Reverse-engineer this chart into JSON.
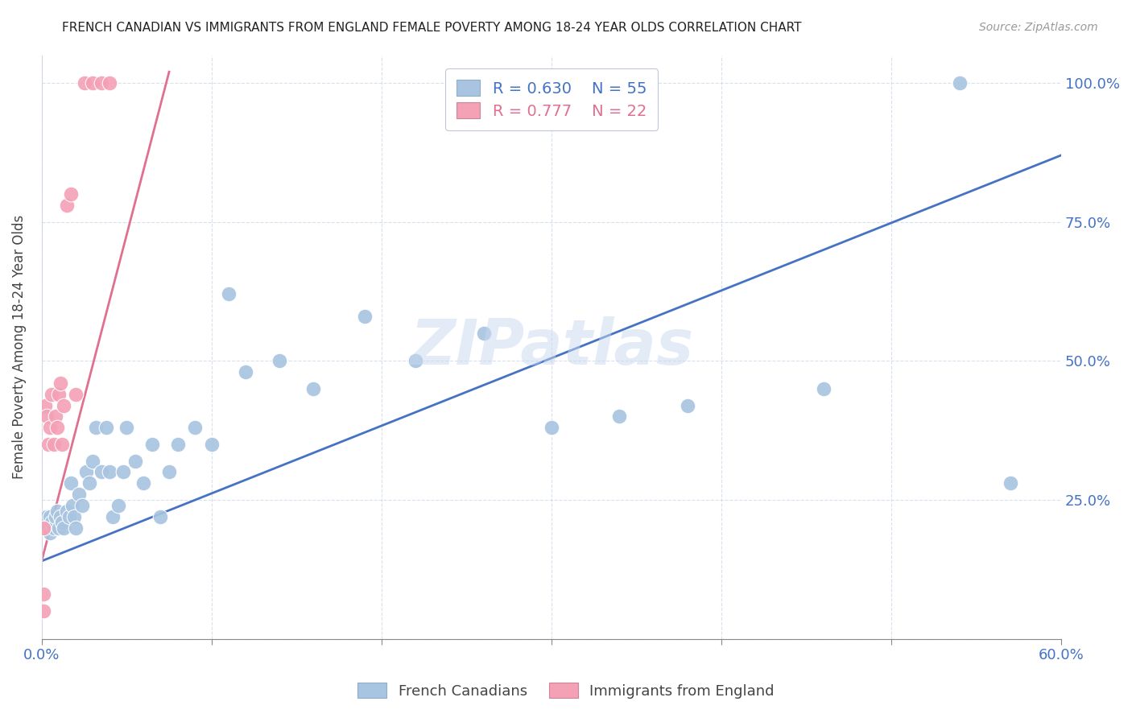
{
  "title": "FRENCH CANADIAN VS IMMIGRANTS FROM ENGLAND FEMALE POVERTY AMONG 18-24 YEAR OLDS CORRELATION CHART",
  "source": "Source: ZipAtlas.com",
  "ylabel": "Female Poverty Among 18-24 Year Olds",
  "watermark": "ZIPatlas",
  "xlim": [
    0.0,
    0.6
  ],
  "ylim": [
    0.0,
    1.05
  ],
  "xticks": [
    0.0,
    0.1,
    0.2,
    0.3,
    0.4,
    0.5,
    0.6
  ],
  "xticklabels": [
    "0.0%",
    "",
    "",
    "",
    "",
    "",
    "60.0%"
  ],
  "yticks": [
    0.0,
    0.25,
    0.5,
    0.75,
    1.0
  ],
  "yticklabels": [
    "",
    "25.0%",
    "50.0%",
    "75.0%",
    "100.0%"
  ],
  "blue_R": 0.63,
  "blue_N": 55,
  "pink_R": 0.777,
  "pink_N": 22,
  "blue_color": "#a8c4e0",
  "pink_color": "#f4a0b5",
  "blue_line_color": "#4472c4",
  "pink_line_color": "#e07090",
  "legend_blue_label": "French Canadians",
  "legend_pink_label": "Immigrants from England",
  "blue_points_x": [
    0.001,
    0.001,
    0.002,
    0.003,
    0.004,
    0.005,
    0.005,
    0.006,
    0.007,
    0.008,
    0.009,
    0.01,
    0.011,
    0.012,
    0.013,
    0.015,
    0.016,
    0.017,
    0.018,
    0.019,
    0.02,
    0.022,
    0.024,
    0.026,
    0.028,
    0.03,
    0.032,
    0.035,
    0.038,
    0.04,
    0.042,
    0.045,
    0.048,
    0.05,
    0.055,
    0.06,
    0.065,
    0.07,
    0.075,
    0.08,
    0.09,
    0.1,
    0.11,
    0.12,
    0.14,
    0.16,
    0.19,
    0.22,
    0.26,
    0.3,
    0.34,
    0.38,
    0.46,
    0.54,
    0.57
  ],
  "blue_points_y": [
    0.22,
    0.2,
    0.21,
    0.22,
    0.2,
    0.19,
    0.22,
    0.21,
    0.2,
    0.22,
    0.23,
    0.2,
    0.22,
    0.21,
    0.2,
    0.23,
    0.22,
    0.28,
    0.24,
    0.22,
    0.2,
    0.26,
    0.24,
    0.3,
    0.28,
    0.32,
    0.38,
    0.3,
    0.38,
    0.3,
    0.22,
    0.24,
    0.3,
    0.38,
    0.32,
    0.28,
    0.35,
    0.22,
    0.3,
    0.35,
    0.38,
    0.35,
    0.62,
    0.48,
    0.5,
    0.45,
    0.58,
    0.5,
    0.55,
    0.38,
    0.4,
    0.42,
    0.45,
    1.0,
    0.28
  ],
  "pink_points_x": [
    0.001,
    0.001,
    0.001,
    0.002,
    0.003,
    0.004,
    0.005,
    0.006,
    0.007,
    0.008,
    0.009,
    0.01,
    0.011,
    0.012,
    0.013,
    0.015,
    0.017,
    0.02,
    0.025,
    0.03,
    0.035,
    0.04
  ],
  "pink_points_y": [
    0.2,
    0.08,
    0.05,
    0.42,
    0.4,
    0.35,
    0.38,
    0.44,
    0.35,
    0.4,
    0.38,
    0.44,
    0.46,
    0.35,
    0.42,
    0.78,
    0.8,
    0.44,
    1.0,
    1.0,
    1.0,
    1.0
  ],
  "blue_line_x": [
    0.0,
    0.6
  ],
  "blue_line_y": [
    0.14,
    0.87
  ],
  "pink_line_x": [
    0.0,
    0.075
  ],
  "pink_line_y": [
    0.14,
    1.02
  ]
}
